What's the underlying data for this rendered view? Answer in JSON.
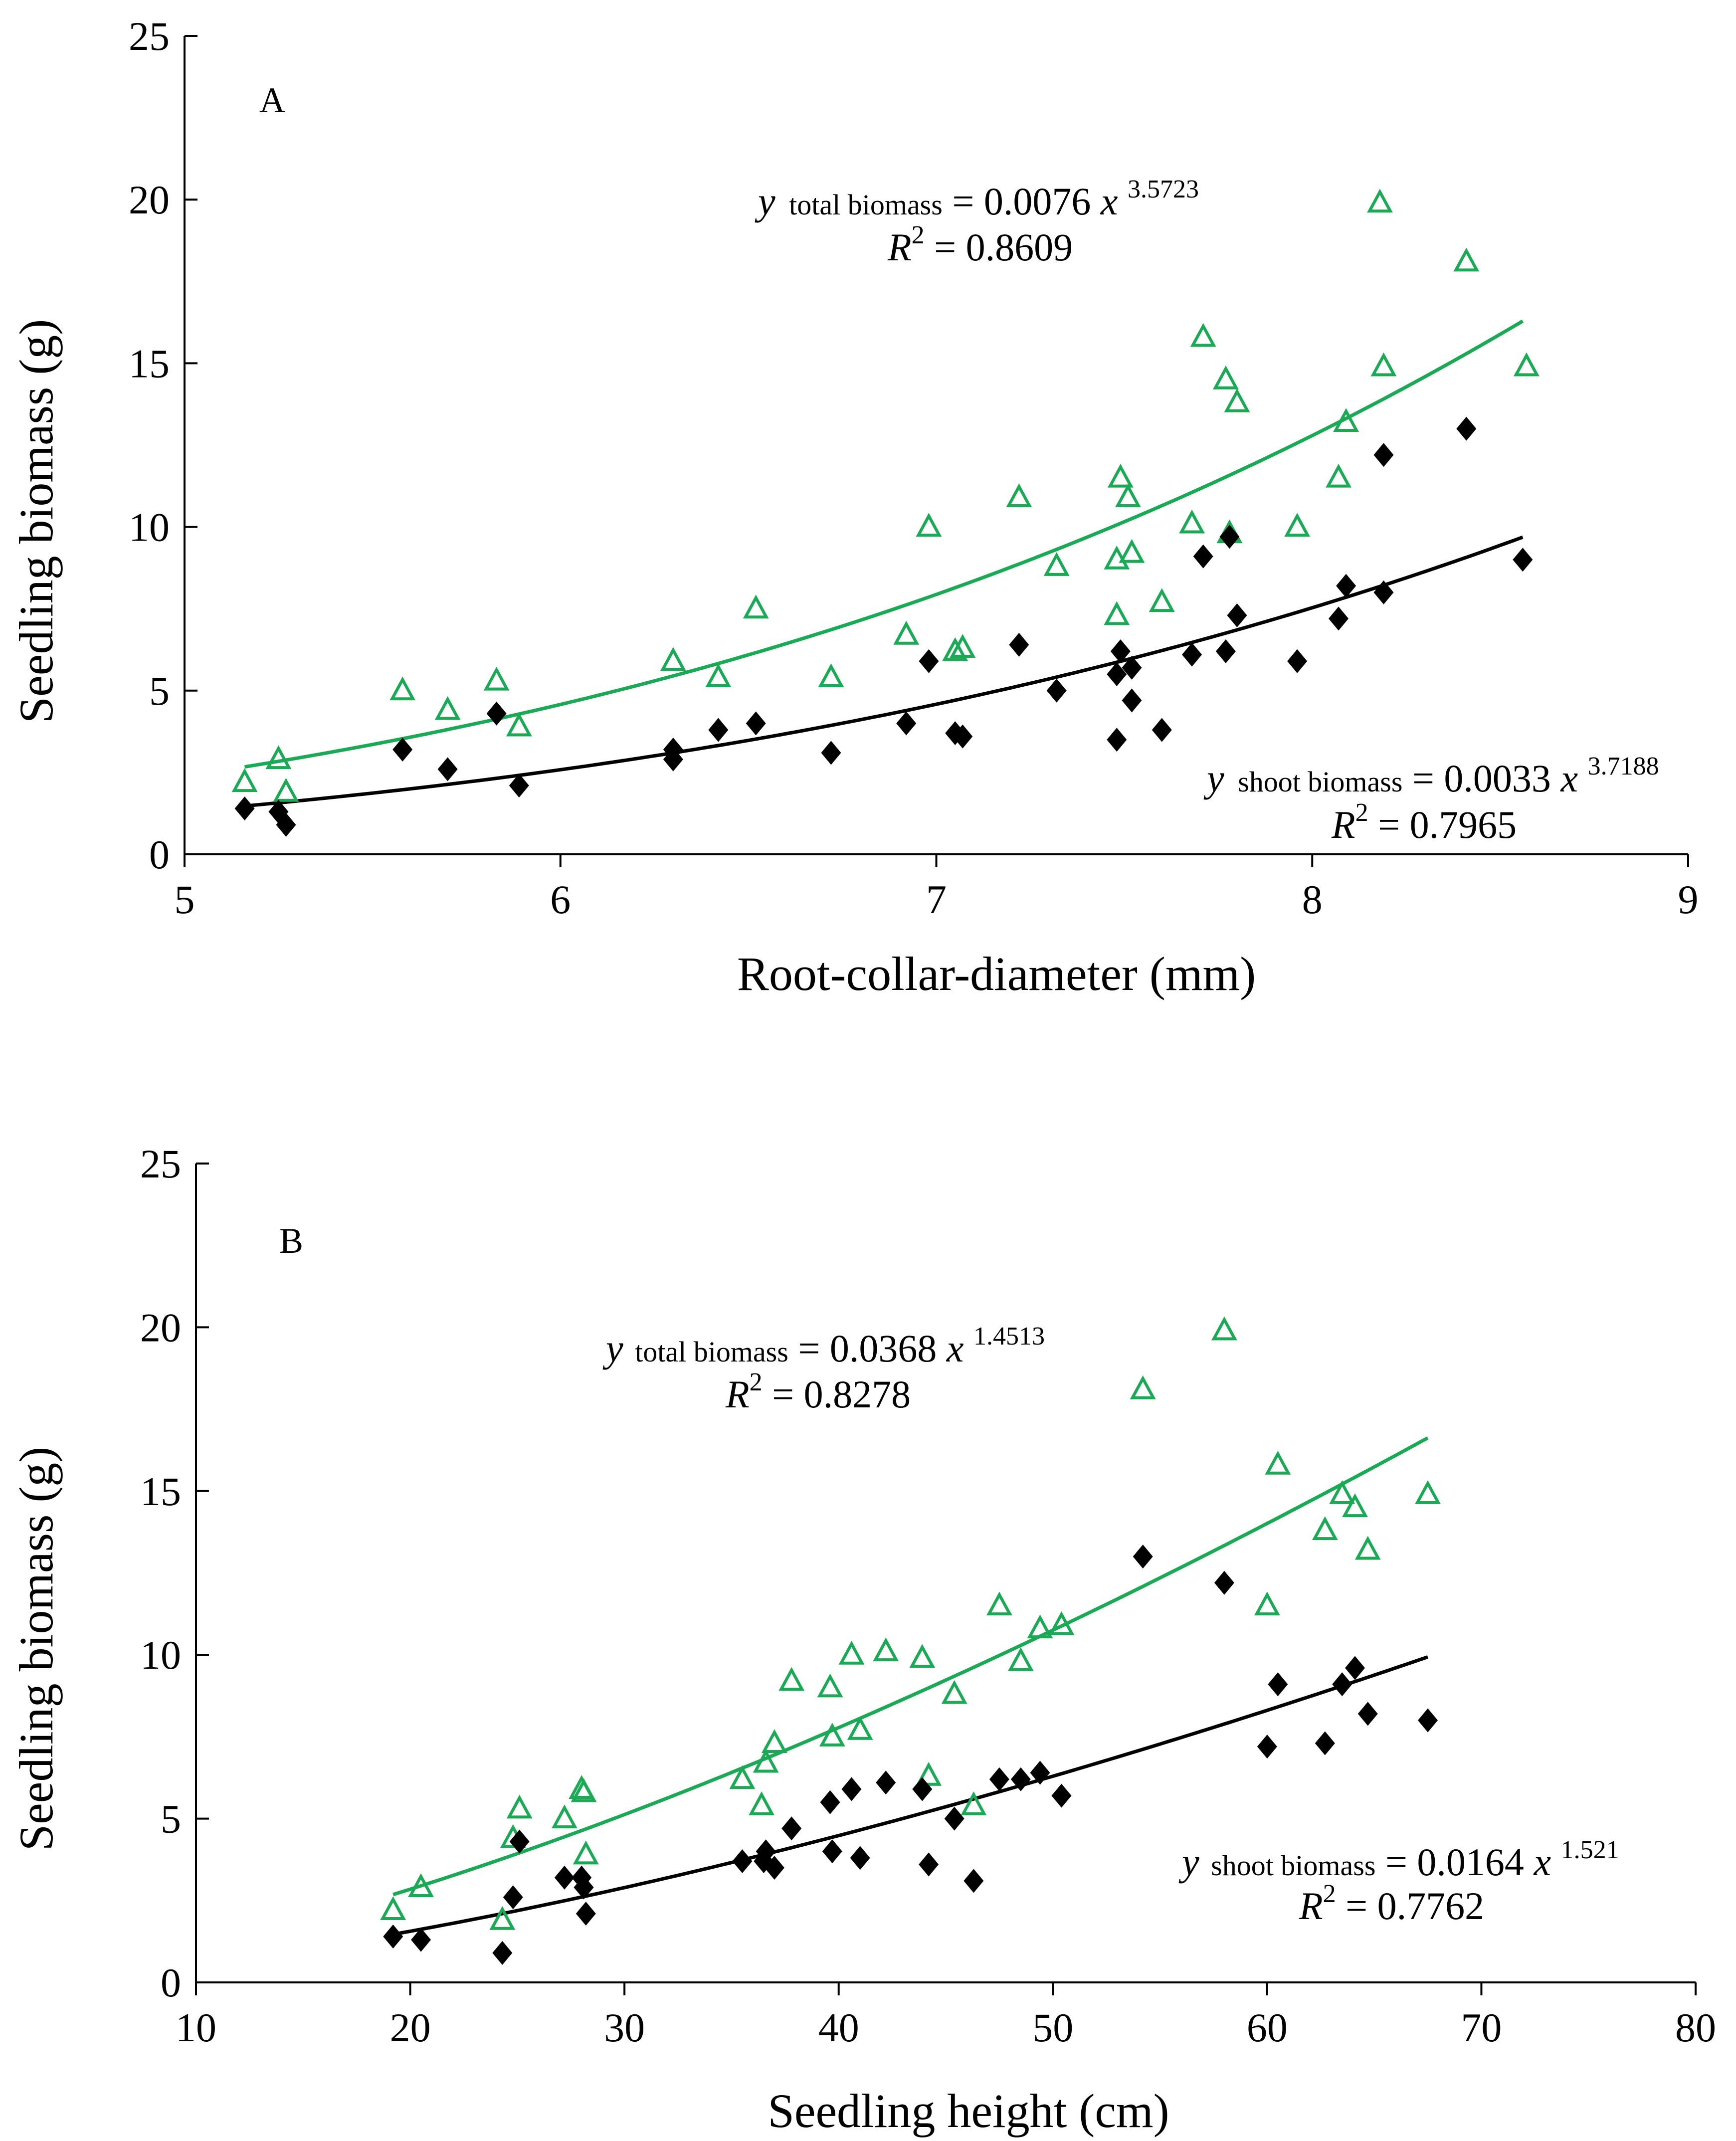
{
  "colors": {
    "total": "#1aaa55",
    "shoot": "#000000",
    "axis": "#000000"
  },
  "chart_data": [
    {
      "type": "scatter",
      "panel_label": "A",
      "xlabel": "Root-collar-diameter (mm)",
      "ylabel": "Seedling biomass (g)",
      "xlim": [
        5,
        9
      ],
      "ylim": [
        0,
        25
      ],
      "xticks": [
        "5",
        "6",
        "7",
        "8",
        "9"
      ],
      "yticks": [
        "0",
        "5",
        "10",
        "15",
        "20",
        "25"
      ],
      "series": [
        {
          "name": "total biomass",
          "marker": "open-triangle",
          "color": "#1aaa55",
          "points": [
            [
              5.16,
              2.2
            ],
            [
              5.25,
              2.9
            ],
            [
              5.27,
              1.9
            ],
            [
              5.58,
              5.0
            ],
            [
              5.7,
              4.4
            ],
            [
              5.83,
              5.3
            ],
            [
              5.89,
              3.9
            ],
            [
              6.3,
              5.9
            ],
            [
              6.42,
              5.4
            ],
            [
              6.52,
              7.5
            ],
            [
              6.72,
              5.4
            ],
            [
              6.92,
              6.7
            ],
            [
              6.98,
              10.0
            ],
            [
              7.05,
              6.2
            ],
            [
              7.07,
              6.3
            ],
            [
              7.22,
              10.9
            ],
            [
              7.32,
              8.8
            ],
            [
              7.48,
              9.0
            ],
            [
              7.48,
              7.3
            ],
            [
              7.49,
              11.5
            ],
            [
              7.51,
              10.9
            ],
            [
              7.52,
              9.2
            ],
            [
              7.6,
              7.7
            ],
            [
              7.68,
              10.1
            ],
            [
              7.71,
              15.8
            ],
            [
              7.77,
              14.5
            ],
            [
              7.78,
              9.8
            ],
            [
              7.8,
              13.8
            ],
            [
              7.96,
              10.0
            ],
            [
              8.07,
              11.5
            ],
            [
              8.09,
              13.2
            ],
            [
              8.18,
              19.9
            ],
            [
              8.19,
              14.9
            ],
            [
              8.41,
              18.1
            ],
            [
              8.57,
              14.9
            ]
          ]
        },
        {
          "name": "shoot biomass",
          "marker": "filled-diamond",
          "color": "#000000",
          "points": [
            [
              5.16,
              1.4
            ],
            [
              5.25,
              1.3
            ],
            [
              5.27,
              0.9
            ],
            [
              5.58,
              3.2
            ],
            [
              5.7,
              2.6
            ],
            [
              5.83,
              4.3
            ],
            [
              5.89,
              2.1
            ],
            [
              6.3,
              3.2
            ],
            [
              6.3,
              2.9
            ],
            [
              6.42,
              3.8
            ],
            [
              6.52,
              4.0
            ],
            [
              6.72,
              3.1
            ],
            [
              6.92,
              4.0
            ],
            [
              6.98,
              5.9
            ],
            [
              7.05,
              3.7
            ],
            [
              7.07,
              3.6
            ],
            [
              7.22,
              6.4
            ],
            [
              7.32,
              5.0
            ],
            [
              7.48,
              5.5
            ],
            [
              7.48,
              3.5
            ],
            [
              7.49,
              6.2
            ],
            [
              7.52,
              5.7
            ],
            [
              7.52,
              4.7
            ],
            [
              7.6,
              3.8
            ],
            [
              7.68,
              6.1
            ],
            [
              7.71,
              9.1
            ],
            [
              7.77,
              6.2
            ],
            [
              7.78,
              9.7
            ],
            [
              7.8,
              7.3
            ],
            [
              7.96,
              5.9
            ],
            [
              8.07,
              7.2
            ],
            [
              8.09,
              8.2
            ],
            [
              8.19,
              8.0
            ],
            [
              8.19,
              12.2
            ],
            [
              8.41,
              13.0
            ],
            [
              8.56,
              9.0
            ]
          ]
        }
      ],
      "fits": [
        {
          "series": "total biomass",
          "a": 0.0076,
          "b": 3.5723,
          "x_range": [
            5.16,
            8.56
          ]
        },
        {
          "series": "shoot biomass",
          "a": 0.0033,
          "b": 3.7188,
          "x_range": [
            5.16,
            8.56
          ]
        }
      ],
      "equations": [
        {
          "y": "y",
          "sub": "total biomass",
          "eq": " = 0.0076",
          "x": "x",
          "exp": "3.5723",
          "r2_label": "R",
          "r2_value": " = 0.8609"
        },
        {
          "y": "y",
          "sub": "shoot biomass",
          "eq": " = 0.0033",
          "x": "x",
          "exp": "3.7188",
          "r2_label": "R",
          "r2_value": " = 0.7965"
        }
      ]
    },
    {
      "type": "scatter",
      "panel_label": "B",
      "xlabel": "Seedling height (cm)",
      "ylabel": "Seedling biomass (g)",
      "xlim": [
        10,
        80
      ],
      "ylim": [
        0,
        25
      ],
      "xticks": [
        "10",
        "20",
        "30",
        "40",
        "50",
        "60",
        "70",
        "80"
      ],
      "yticks": [
        "0",
        "5",
        "10",
        "15",
        "20",
        "25"
      ],
      "series": [
        {
          "name": "total biomass",
          "marker": "open-triangle",
          "color": "#1aaa55",
          "points": [
            [
              19.2,
              2.2
            ],
            [
              20.5,
              2.9
            ],
            [
              24.3,
              1.9
            ],
            [
              24.8,
              4.4
            ],
            [
              25.1,
              5.3
            ],
            [
              27.2,
              5.0
            ],
            [
              28.0,
              5.9
            ],
            [
              28.1,
              5.8
            ],
            [
              28.2,
              3.9
            ],
            [
              35.5,
              6.2
            ],
            [
              36.4,
              5.4
            ],
            [
              36.6,
              6.7
            ],
            [
              37.0,
              7.3
            ],
            [
              37.8,
              9.2
            ],
            [
              39.6,
              9.0
            ],
            [
              39.7,
              7.5
            ],
            [
              40.6,
              10.0
            ],
            [
              41.0,
              7.7
            ],
            [
              42.2,
              10.1
            ],
            [
              43.9,
              9.9
            ],
            [
              44.2,
              6.3
            ],
            [
              45.4,
              8.8
            ],
            [
              46.3,
              5.4
            ],
            [
              47.5,
              11.5
            ],
            [
              48.5,
              9.8
            ],
            [
              49.4,
              10.8
            ],
            [
              50.4,
              10.9
            ],
            [
              54.2,
              18.1
            ],
            [
              58.0,
              19.9
            ],
            [
              60.0,
              11.5
            ],
            [
              60.5,
              15.8
            ],
            [
              62.7,
              13.8
            ],
            [
              63.5,
              14.9
            ],
            [
              64.1,
              14.5
            ],
            [
              64.7,
              13.2
            ],
            [
              67.5,
              14.9
            ]
          ]
        },
        {
          "name": "shoot biomass",
          "marker": "filled-diamond",
          "color": "#000000",
          "points": [
            [
              19.2,
              1.4
            ],
            [
              20.5,
              1.3
            ],
            [
              24.3,
              0.9
            ],
            [
              24.8,
              2.6
            ],
            [
              25.1,
              4.3
            ],
            [
              27.2,
              3.2
            ],
            [
              28.0,
              3.2
            ],
            [
              28.1,
              2.9
            ],
            [
              28.2,
              2.1
            ],
            [
              35.5,
              3.7
            ],
            [
              36.5,
              3.7
            ],
            [
              36.6,
              4.0
            ],
            [
              37.0,
              3.5
            ],
            [
              37.8,
              4.7
            ],
            [
              39.6,
              5.5
            ],
            [
              39.7,
              4.0
            ],
            [
              40.6,
              5.9
            ],
            [
              41.0,
              3.8
            ],
            [
              42.2,
              6.1
            ],
            [
              43.9,
              5.9
            ],
            [
              44.2,
              3.6
            ],
            [
              45.4,
              5.0
            ],
            [
              46.3,
              3.1
            ],
            [
              47.5,
              6.2
            ],
            [
              48.5,
              6.2
            ],
            [
              49.4,
              6.4
            ],
            [
              50.4,
              5.7
            ],
            [
              54.2,
              13.0
            ],
            [
              58.0,
              12.2
            ],
            [
              60.0,
              7.2
            ],
            [
              60.5,
              9.1
            ],
            [
              62.7,
              7.3
            ],
            [
              63.5,
              9.1
            ],
            [
              64.1,
              9.6
            ],
            [
              64.7,
              8.2
            ],
            [
              67.5,
              8.0
            ]
          ]
        }
      ],
      "fits": [
        {
          "series": "total biomass",
          "a": 0.0368,
          "b": 1.4513,
          "x_range": [
            19.2,
            67.5
          ]
        },
        {
          "series": "shoot biomass",
          "a": 0.0164,
          "b": 1.521,
          "x_range": [
            19.2,
            67.5
          ]
        }
      ],
      "equations": [
        {
          "y": "y",
          "sub": "total biomass",
          "eq": " = 0.0368",
          "x": "x",
          "exp": "1.4513",
          "r2_label": "R",
          "r2_value": " = 0.8278"
        },
        {
          "y": "y",
          "sub": "shoot biomass",
          "eq": " = 0.0164",
          "x": "x",
          "exp": "1.521",
          "r2_label": "R",
          "r2_value": " = 0.7762"
        }
      ]
    }
  ]
}
